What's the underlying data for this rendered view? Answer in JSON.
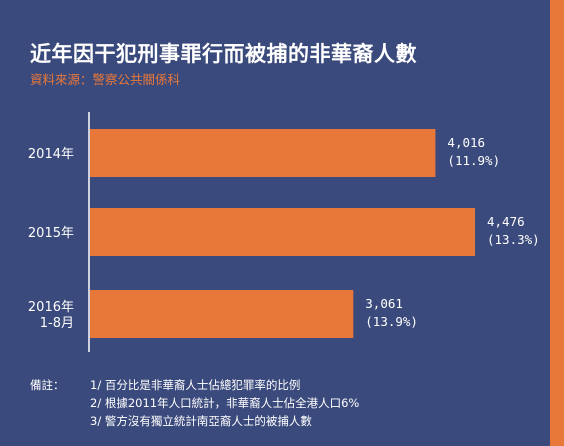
{
  "header": {
    "title": "近年因干犯刑事罪行而被捕的非華裔人數",
    "source": "資料來源：警察公共關係科"
  },
  "chart_data": {
    "type": "bar",
    "orientation": "horizontal",
    "categories": [
      "2014年",
      "2015年",
      "2016年\n1-8月"
    ],
    "values": [
      4016,
      4476,
      3061
    ],
    "value_labels": [
      "4,016",
      "4,476",
      "3,061"
    ],
    "percent_labels": [
      "(11.9%)",
      "(13.3%)",
      "(13.9%)"
    ],
    "bar_color": "#e8773a",
    "grid": false,
    "xlim": [
      0,
      4476
    ]
  },
  "notes": {
    "label": "備註：",
    "items": [
      "1/ 百分比是非華裔人士佔總犯罪率的比例",
      "2/ 根據2011年人口統計，非華裔人士佔全港人口6%",
      "3/ 警方沒有獨立統計南亞裔人士的被捕人數"
    ]
  },
  "colors": {
    "panel": "#3b4a7c",
    "accent": "#e8773a",
    "text": "#ffffff"
  }
}
